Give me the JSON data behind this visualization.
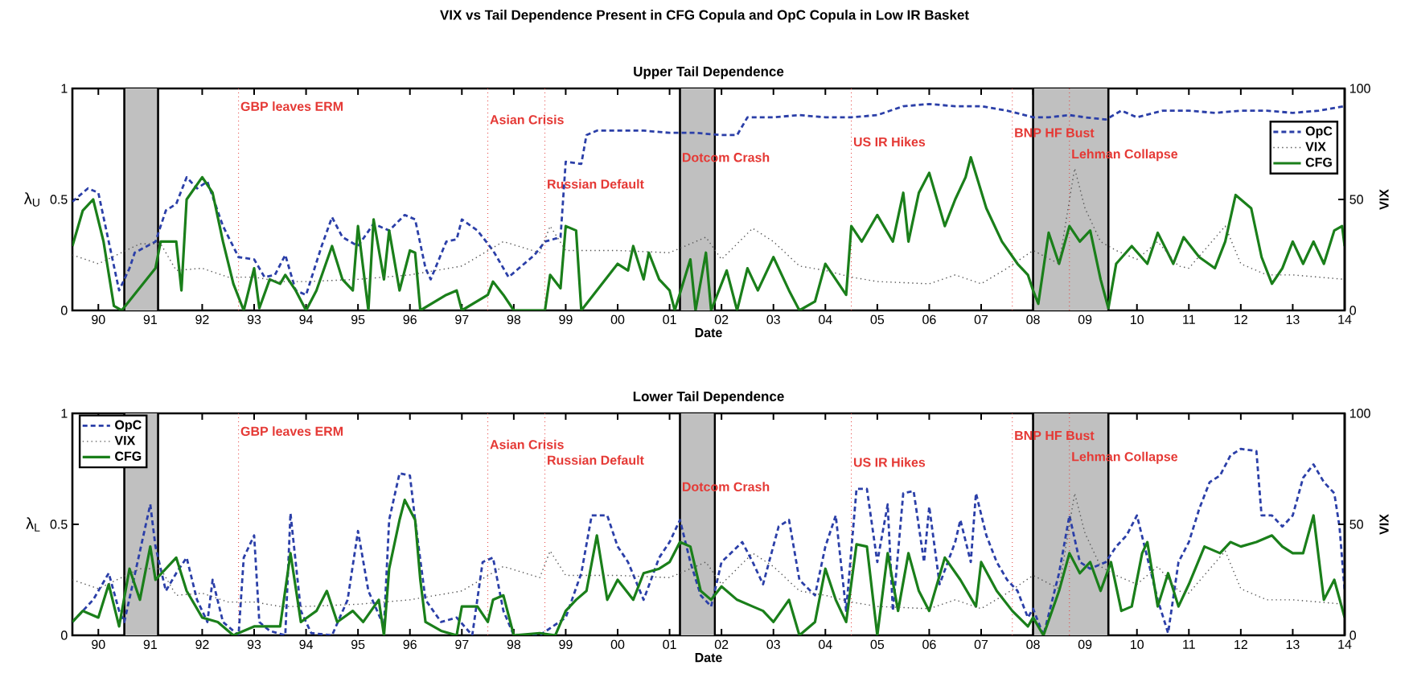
{
  "chart_data": [
    {
      "type": "line",
      "title": "VIX vs Tail Dependence Present in CFG Copula and OpC Copula in Low IR Basket",
      "subtitle": "Upper Tail Dependence",
      "xlabel": "Date",
      "ylabel": "λ$_{U}$",
      "y2label": "VIX",
      "xlim": [
        1989.5,
        2014.0
      ],
      "xticks": [
        {
          "value": 1990,
          "label": "90"
        },
        {
          "value": 1991,
          "label": "91"
        },
        {
          "value": 1992,
          "label": "92"
        },
        {
          "value": 1993,
          "label": "93"
        },
        {
          "value": 1994,
          "label": "94"
        },
        {
          "value": 1995,
          "label": "95"
        },
        {
          "value": 1996,
          "label": "96"
        },
        {
          "value": 1997,
          "label": "97"
        },
        {
          "value": 1998,
          "label": "98"
        },
        {
          "value": 1999,
          "label": "99"
        },
        {
          "value": 2000,
          "label": "00"
        },
        {
          "value": 2001,
          "label": "01"
        },
        {
          "value": 2002,
          "label": "02"
        },
        {
          "value": 2003,
          "label": "03"
        },
        {
          "value": 2004,
          "label": "04"
        },
        {
          "value": 2005,
          "label": "05"
        },
        {
          "value": 2006,
          "label": "06"
        },
        {
          "value": 2007,
          "label": "07"
        },
        {
          "value": 2008,
          "label": "08"
        },
        {
          "value": 2009,
          "label": "09"
        },
        {
          "value": 2010,
          "label": "10"
        },
        {
          "value": 2011,
          "label": "11"
        },
        {
          "value": 2012,
          "label": "12"
        },
        {
          "value": 2013,
          "label": "13"
        },
        {
          "value": 2014,
          "label": "14"
        }
      ],
      "ylim": [
        0,
        1
      ],
      "yticks": [
        0,
        0.5,
        1
      ],
      "y2lim": [
        0,
        100
      ],
      "y2ticks": [
        0,
        50,
        100
      ],
      "legend": "top right",
      "marker": "none",
      "series": [
        {
          "name": "OpC",
          "color": "#2b3fa8",
          "line_style": "dashed",
          "x": [
            1989.5,
            1989.8,
            1990.0,
            1990.2,
            1990.4,
            1990.6,
            1990.7,
            1991.1,
            1991.3,
            1991.5,
            1991.7,
            1991.9,
            1992.1,
            1992.4,
            1992.7,
            1993.0,
            1993.2,
            1993.4,
            1993.6,
            1993.8,
            1994.0,
            1994.3,
            1994.5,
            1994.7,
            1995.0,
            1995.3,
            1995.6,
            1995.9,
            1996.1,
            1996.3,
            1996.4,
            1996.7,
            1996.9,
            1997.0,
            1997.3,
            1997.6,
            1997.9,
            1998.1,
            1998.4,
            1998.6,
            1998.9,
            1999.0,
            1999.3,
            1999.4,
            1999.6,
            2000.0,
            2000.5,
            2001.0,
            2001.5,
            2002.0,
            2002.3,
            2002.5,
            2003.0,
            2003.5,
            2004.0,
            2004.5,
            2005.0,
            2005.5,
            2006.0,
            2006.5,
            2007.0,
            2007.5,
            2008.0,
            2008.3,
            2008.7,
            2009.0,
            2009.4,
            2009.7,
            2010.0,
            2010.5,
            2011.0,
            2011.5,
            2012.0,
            2012.5,
            2013.0,
            2013.5,
            2014.0
          ],
          "values": [
            0.49,
            0.55,
            0.53,
            0.31,
            0.09,
            0.19,
            0.26,
            0.31,
            0.45,
            0.48,
            0.6,
            0.55,
            0.58,
            0.38,
            0.24,
            0.23,
            0.15,
            0.16,
            0.25,
            0.09,
            0.07,
            0.29,
            0.42,
            0.33,
            0.29,
            0.39,
            0.36,
            0.43,
            0.41,
            0.19,
            0.14,
            0.31,
            0.32,
            0.41,
            0.36,
            0.27,
            0.15,
            0.19,
            0.25,
            0.31,
            0.33,
            0.67,
            0.66,
            0.79,
            0.81,
            0.81,
            0.81,
            0.8,
            0.8,
            0.79,
            0.79,
            0.87,
            0.87,
            0.88,
            0.87,
            0.87,
            0.88,
            0.92,
            0.93,
            0.92,
            0.92,
            0.9,
            0.87,
            0.87,
            0.88,
            0.87,
            0.86,
            0.9,
            0.87,
            0.9,
            0.9,
            0.89,
            0.9,
            0.9,
            0.89,
            0.9,
            0.92
          ]
        },
        {
          "name": "VIX",
          "color": "#555555",
          "line_style": "dotted",
          "axis": "y2",
          "x": [
            1989.5,
            1990.0,
            1990.8,
            1991.2,
            1991.5,
            1992.0,
            1992.5,
            1993.0,
            1993.5,
            1994.0,
            1995.0,
            1996.0,
            1997.0,
            1997.8,
            1998.5,
            1998.7,
            1999.0,
            2000.0,
            2001.0,
            2001.7,
            2002.0,
            2002.6,
            2003.0,
            2003.5,
            2004.0,
            2004.5,
            2005.0,
            2006.0,
            2006.5,
            2007.0,
            2007.5,
            2008.0,
            2008.5,
            2008.8,
            2009.0,
            2009.3,
            2009.6,
            2010.0,
            2010.4,
            2010.8,
            2011.0,
            2011.7,
            2012.0,
            2012.5,
            2013.0,
            2013.5,
            2014.0
          ],
          "values": [
            25,
            21,
            30,
            30,
            18,
            19,
            15,
            15,
            13,
            13,
            14,
            16,
            20,
            31,
            26,
            38,
            27,
            27,
            26,
            33,
            23,
            37,
            31,
            20,
            18,
            15,
            13,
            12,
            16,
            12,
            19,
            27,
            21,
            64,
            46,
            31,
            27,
            23,
            31,
            20,
            19,
            38,
            21,
            16,
            16,
            15,
            14
          ]
        },
        {
          "name": "CFG",
          "color": "#1a7f1a",
          "line_style": "solid",
          "x": [
            1989.5,
            1989.7,
            1989.9,
            1990.1,
            1990.3,
            1990.45,
            1991.1,
            1991.2,
            1991.5,
            1991.6,
            1991.7,
            1992.0,
            1992.2,
            1992.4,
            1992.6,
            1992.8,
            1993.0,
            1993.1,
            1993.3,
            1993.5,
            1993.6,
            1993.8,
            1994.0,
            1994.2,
            1994.5,
            1994.7,
            1994.9,
            1995.0,
            1995.2,
            1995.3,
            1995.5,
            1995.6,
            1995.8,
            1996.0,
            1996.1,
            1996.2,
            1996.7,
            1996.9,
            1997.0,
            1997.5,
            1997.6,
            1997.8,
            1998.0,
            1998.6,
            1998.7,
            1998.9,
            1999.0,
            1999.2,
            1999.3,
            2000.0,
            2000.2,
            2000.3,
            2000.5,
            2000.6,
            2000.8,
            2001.0,
            2001.1,
            2001.4,
            2001.5,
            2001.7,
            2001.8,
            2002.1,
            2002.3,
            2002.5,
            2002.7,
            2003.0,
            2003.3,
            2003.5,
            2003.8,
            2004.0,
            2004.2,
            2004.4,
            2004.5,
            2004.7,
            2005.0,
            2005.3,
            2005.5,
            2005.6,
            2005.8,
            2006.0,
            2006.3,
            2006.5,
            2006.7,
            2006.8,
            2007.1,
            2007.4,
            2007.7,
            2007.9,
            2008.0,
            2008.1,
            2008.3,
            2008.5,
            2008.7,
            2008.9,
            2009.1,
            2009.3,
            2009.45,
            2009.6,
            2009.9,
            2010.2,
            2010.4,
            2010.7,
            2010.9,
            2011.2,
            2011.5,
            2011.7,
            2011.9,
            2012.2,
            2012.4,
            2012.6,
            2012.8,
            2013.0,
            2013.2,
            2013.4,
            2013.6,
            2013.8,
            2013.95,
            2014.0
          ],
          "values": [
            0.29,
            0.45,
            0.5,
            0.31,
            0.02,
            0,
            0.19,
            0.31,
            0.31,
            0.09,
            0.5,
            0.6,
            0.53,
            0.31,
            0.12,
            0,
            0.19,
            0.01,
            0.14,
            0.12,
            0.16,
            0.09,
            0,
            0.09,
            0.29,
            0.14,
            0.09,
            0.38,
            0,
            0.41,
            0.14,
            0.36,
            0.09,
            0.27,
            0.26,
            0,
            0.07,
            0.09,
            0,
            0.07,
            0.13,
            0.07,
            0,
            0,
            0.16,
            0.1,
            0.38,
            0.36,
            0,
            0.21,
            0.18,
            0.29,
            0.14,
            0.26,
            0.14,
            0.09,
            0,
            0.23,
            0,
            0.26,
            0,
            0.18,
            0,
            0.19,
            0.09,
            0.24,
            0.09,
            0,
            0.04,
            0.21,
            0.14,
            0.07,
            0.38,
            0.31,
            0.43,
            0.31,
            0.53,
            0.31,
            0.53,
            0.62,
            0.38,
            0.5,
            0.6,
            0.69,
            0.46,
            0.31,
            0.21,
            0.16,
            0.09,
            0.03,
            0.35,
            0.21,
            0.38,
            0.31,
            0.36,
            0.14,
            0.01,
            0.21,
            0.29,
            0.21,
            0.35,
            0.21,
            0.33,
            0.24,
            0.19,
            0.31,
            0.52,
            0.46,
            0.24,
            0.12,
            0.19,
            0.31,
            0.21,
            0.31,
            0.21,
            0.36,
            0.38,
            0.29
          ]
        }
      ],
      "ref_lines": [
        {
          "axis": "x",
          "value": 1992.7,
          "label": "GBP leaves ERM",
          "color": "#e53935",
          "line_style": "dotted"
        },
        {
          "axis": "x",
          "value": 1997.5,
          "label": "Asian Crisis",
          "color": "#e53935",
          "line_style": "dotted"
        },
        {
          "axis": "x",
          "value": 1998.6,
          "label": "Russian Default",
          "color": "#e53935",
          "line_style": "dotted"
        },
        {
          "axis": "x",
          "value": 2004.5,
          "label": "US IR Hikes",
          "color": "#e53935",
          "line_style": "dotted"
        },
        {
          "axis": "x",
          "value": 2007.6,
          "label": "BNP HF Bust",
          "color": "#e53935",
          "line_style": "dotted"
        },
        {
          "axis": "x",
          "value": 2008.7,
          "label": "Lehman Collapse",
          "color": "#e53935",
          "line_style": "dotted"
        }
      ],
      "bands": [
        {
          "axis": "x",
          "from": 1990.5,
          "to": 1991.15,
          "color": "#c0c0c0"
        },
        {
          "axis": "x",
          "from": 2001.2,
          "to": 2001.87,
          "label": "Dotcom Crash",
          "color": "#c0c0c0"
        },
        {
          "axis": "x",
          "from": 2008.0,
          "to": 2009.45,
          "color": "#c0c0c0"
        }
      ]
    },
    {
      "type": "line",
      "title": "Lower Tail Dependence",
      "xlabel": "Date",
      "ylabel": "λ$_{L}$",
      "y2label": "VIX",
      "xlim": [
        1989.5,
        2014.0
      ],
      "xticks": [
        {
          "value": 1990,
          "label": "90"
        },
        {
          "value": 1991,
          "label": "91"
        },
        {
          "value": 1992,
          "label": "92"
        },
        {
          "value": 1993,
          "label": "93"
        },
        {
          "value": 1994,
          "label": "94"
        },
        {
          "value": 1995,
          "label": "95"
        },
        {
          "value": 1996,
          "label": "96"
        },
        {
          "value": 1997,
          "label": "97"
        },
        {
          "value": 1998,
          "label": "98"
        },
        {
          "value": 1999,
          "label": "99"
        },
        {
          "value": 2000,
          "label": "00"
        },
        {
          "value": 2001,
          "label": "01"
        },
        {
          "value": 2002,
          "label": "02"
        },
        {
          "value": 2003,
          "label": "03"
        },
        {
          "value": 2004,
          "label": "04"
        },
        {
          "value": 2005,
          "label": "05"
        },
        {
          "value": 2006,
          "label": "06"
        },
        {
          "value": 2007,
          "label": "07"
        },
        {
          "value": 2008,
          "label": "08"
        },
        {
          "value": 2009,
          "label": "09"
        },
        {
          "value": 2010,
          "label": "10"
        },
        {
          "value": 2011,
          "label": "11"
        },
        {
          "value": 2012,
          "label": "12"
        },
        {
          "value": 2013,
          "label": "13"
        },
        {
          "value": 2014,
          "label": "14"
        }
      ],
      "ylim": [
        0,
        1
      ],
      "yticks": [
        0,
        0.5,
        1
      ],
      "y2lim": [
        0,
        100
      ],
      "y2ticks": [
        0,
        50,
        100
      ],
      "legend": "top left",
      "marker": "none",
      "series": [
        {
          "name": "OpC",
          "color": "#2b3fa8",
          "line_style": "dashed",
          "x": [
            1989.5,
            1989.9,
            1990.2,
            1990.4,
            1990.5,
            1991.0,
            1991.1,
            1991.3,
            1991.5,
            1991.7,
            1991.9,
            1992.1,
            1992.2,
            1992.4,
            1992.7,
            1992.8,
            1993.0,
            1993.1,
            1993.3,
            1993.6,
            1993.7,
            1993.9,
            1994.1,
            1994.5,
            1994.8,
            1995.0,
            1995.2,
            1995.5,
            1995.6,
            1995.8,
            1996.0,
            1996.1,
            1996.3,
            1996.6,
            1996.9,
            1997.2,
            1997.4,
            1997.6,
            1997.8,
            1998.0,
            1998.5,
            1999.0,
            1999.3,
            1999.5,
            1999.8,
            2000.0,
            2000.2,
            2000.5,
            2000.8,
            2001.0,
            2001.2,
            2001.4,
            2001.6,
            2001.8,
            2002.0,
            2002.4,
            2002.6,
            2002.8,
            2003.1,
            2003.3,
            2003.5,
            2003.8,
            2004.0,
            2004.2,
            2004.4,
            2004.6,
            2004.8,
            2005.0,
            2005.2,
            2005.3,
            2005.5,
            2005.7,
            2005.9,
            2006.0,
            2006.2,
            2006.5,
            2006.6,
            2006.8,
            2006.9,
            2007.1,
            2007.3,
            2007.5,
            2007.7,
            2007.9,
            2008.0,
            2008.2,
            2008.5,
            2008.7,
            2008.9,
            2009.1,
            2009.4,
            2009.6,
            2009.8,
            2010.0,
            2010.2,
            2010.4,
            2010.6,
            2010.8,
            2011.0,
            2011.2,
            2011.4,
            2011.6,
            2011.8,
            2012.0,
            2012.3,
            2012.4,
            2012.6,
            2012.8,
            2013.0,
            2013.2,
            2013.4,
            2013.6,
            2013.8,
            2013.9,
            2014.0
          ],
          "values": [
            0.06,
            0.16,
            0.28,
            0.11,
            0.06,
            0.59,
            0.4,
            0.2,
            0.28,
            0.35,
            0.16,
            0.06,
            0.25,
            0.06,
            0,
            0.35,
            0.45,
            0.06,
            0.02,
            0,
            0.55,
            0.11,
            0.01,
            0,
            0.16,
            0.47,
            0.2,
            0.04,
            0.52,
            0.73,
            0.72,
            0.52,
            0.16,
            0.06,
            0.08,
            0,
            0.33,
            0.35,
            0.11,
            0,
            0,
            0.08,
            0.28,
            0.54,
            0.54,
            0.4,
            0.33,
            0.16,
            0.35,
            0.42,
            0.52,
            0.33,
            0.18,
            0.13,
            0.33,
            0.42,
            0.33,
            0.23,
            0.49,
            0.52,
            0.25,
            0.18,
            0.4,
            0.54,
            0.11,
            0.66,
            0.66,
            0.33,
            0.59,
            0.11,
            0.64,
            0.65,
            0.33,
            0.58,
            0.23,
            0.42,
            0.52,
            0.33,
            0.64,
            0.45,
            0.33,
            0.25,
            0.2,
            0.08,
            0.12,
            0,
            0.28,
            0.54,
            0.33,
            0.3,
            0.33,
            0.4,
            0.45,
            0.54,
            0.35,
            0.16,
            0.01,
            0.33,
            0.42,
            0.57,
            0.69,
            0.72,
            0.81,
            0.84,
            0.83,
            0.54,
            0.54,
            0.49,
            0.54,
            0.71,
            0.77,
            0.69,
            0.64,
            0.49,
            0.2
          ]
        },
        {
          "name": "VIX",
          "color": "#555555",
          "line_style": "dotted",
          "axis": "y2",
          "x": [
            1989.5,
            1990.0,
            1990.8,
            1991.2,
            1991.5,
            1992.0,
            1992.5,
            1993.0,
            1993.5,
            1994.0,
            1995.0,
            1996.0,
            1997.0,
            1997.8,
            1998.5,
            1998.7,
            1999.0,
            2000.0,
            2001.0,
            2001.7,
            2002.0,
            2002.6,
            2003.0,
            2003.5,
            2004.0,
            2004.5,
            2005.0,
            2006.0,
            2006.5,
            2007.0,
            2007.5,
            2008.0,
            2008.5,
            2008.8,
            2009.0,
            2009.3,
            2009.6,
            2010.0,
            2010.4,
            2010.8,
            2011.0,
            2011.7,
            2012.0,
            2012.5,
            2013.0,
            2013.5,
            2014.0
          ],
          "values": [
            25,
            21,
            30,
            30,
            18,
            19,
            15,
            15,
            13,
            13,
            14,
            16,
            20,
            31,
            26,
            38,
            27,
            27,
            26,
            33,
            23,
            37,
            31,
            20,
            18,
            15,
            13,
            12,
            16,
            12,
            19,
            27,
            21,
            64,
            46,
            31,
            27,
            23,
            31,
            20,
            19,
            38,
            21,
            16,
            16,
            15,
            14
          ]
        },
        {
          "name": "CFG",
          "color": "#1a7f1a",
          "line_style": "solid",
          "x": [
            1989.5,
            1989.7,
            1990.0,
            1990.2,
            1990.4,
            1990.6,
            1990.8,
            1991.0,
            1991.1,
            1991.3,
            1991.5,
            1991.7,
            1992.0,
            1992.3,
            1992.6,
            1993.0,
            1993.5,
            1993.7,
            1993.9,
            1994.2,
            1994.4,
            1994.6,
            1994.9,
            1995.1,
            1995.4,
            1995.5,
            1995.6,
            1995.8,
            1995.9,
            1996.1,
            1996.2,
            1996.3,
            1996.6,
            1996.9,
            1997.0,
            1997.3,
            1997.5,
            1997.6,
            1997.8,
            1998.0,
            1998.5,
            1998.8,
            1999.0,
            1999.2,
            1999.4,
            1999.6,
            1999.8,
            2000.0,
            2000.3,
            2000.5,
            2000.8,
            2001.0,
            2001.2,
            2001.4,
            2001.6,
            2001.8,
            2002.0,
            2002.3,
            2002.6,
            2002.8,
            2003.0,
            2003.3,
            2003.5,
            2003.8,
            2004.0,
            2004.2,
            2004.4,
            2004.6,
            2004.8,
            2005.0,
            2005.2,
            2005.4,
            2005.6,
            2005.8,
            2006.0,
            2006.3,
            2006.6,
            2006.9,
            2007.0,
            2007.3,
            2007.6,
            2007.9,
            2008.0,
            2008.2,
            2008.5,
            2008.7,
            2008.9,
            2009.1,
            2009.3,
            2009.5,
            2009.7,
            2009.9,
            2010.1,
            2010.2,
            2010.4,
            2010.6,
            2010.8,
            2011.0,
            2011.3,
            2011.6,
            2011.8,
            2012.0,
            2012.3,
            2012.6,
            2012.8,
            2013.0,
            2013.2,
            2013.4,
            2013.6,
            2013.8,
            2014.0
          ],
          "values": [
            0.06,
            0.11,
            0.08,
            0.23,
            0.04,
            0.3,
            0.16,
            0.4,
            0.25,
            0.3,
            0.35,
            0.2,
            0.08,
            0.06,
            0,
            0.04,
            0.04,
            0.37,
            0.06,
            0.11,
            0.2,
            0.06,
            0.11,
            0.06,
            0.16,
            0,
            0.3,
            0.52,
            0.61,
            0.52,
            0.25,
            0.06,
            0.02,
            0,
            0.13,
            0.13,
            0.06,
            0.16,
            0.18,
            0,
            0.01,
            0,
            0.11,
            0.16,
            0.2,
            0.45,
            0.16,
            0.25,
            0.16,
            0.28,
            0.3,
            0.33,
            0.42,
            0.4,
            0.2,
            0.16,
            0.22,
            0.16,
            0.13,
            0.11,
            0.06,
            0.16,
            0,
            0.06,
            0.3,
            0.16,
            0.06,
            0.41,
            0.4,
            0,
            0.37,
            0.11,
            0.37,
            0.2,
            0.11,
            0.35,
            0.25,
            0.13,
            0.33,
            0.2,
            0.11,
            0.04,
            0.08,
            0,
            0.2,
            0.37,
            0.28,
            0.33,
            0.2,
            0.33,
            0.11,
            0.13,
            0.37,
            0.42,
            0.13,
            0.28,
            0.13,
            0.23,
            0.4,
            0.37,
            0.42,
            0.4,
            0.42,
            0.45,
            0.4,
            0.37,
            0.37,
            0.54,
            0.16,
            0.25,
            0.08
          ]
        }
      ],
      "ref_lines": [
        {
          "axis": "x",
          "value": 1992.7,
          "label": "GBP leaves ERM",
          "color": "#e53935",
          "line_style": "dotted"
        },
        {
          "axis": "x",
          "value": 1997.5,
          "label": "Asian Crisis",
          "color": "#e53935",
          "line_style": "dotted"
        },
        {
          "axis": "x",
          "value": 1998.6,
          "label": "Russian Default",
          "color": "#e53935",
          "line_style": "dotted"
        },
        {
          "axis": "x",
          "value": 2004.5,
          "label": "US IR Hikes",
          "color": "#e53935",
          "line_style": "dotted"
        },
        {
          "axis": "x",
          "value": 2007.6,
          "label": "BNP HF Bust",
          "color": "#e53935",
          "line_style": "dotted"
        },
        {
          "axis": "x",
          "value": 2008.7,
          "label": "Lehman Collapse",
          "color": "#e53935",
          "line_style": "dotted"
        }
      ],
      "bands": [
        {
          "axis": "x",
          "from": 1990.5,
          "to": 1991.15,
          "color": "#c0c0c0"
        },
        {
          "axis": "x",
          "from": 2001.2,
          "to": 2001.87,
          "label": "Dotcom Crash",
          "color": "#c0c0c0"
        },
        {
          "axis": "x",
          "from": 2008.0,
          "to": 2009.45,
          "color": "#c0c0c0"
        }
      ]
    }
  ]
}
